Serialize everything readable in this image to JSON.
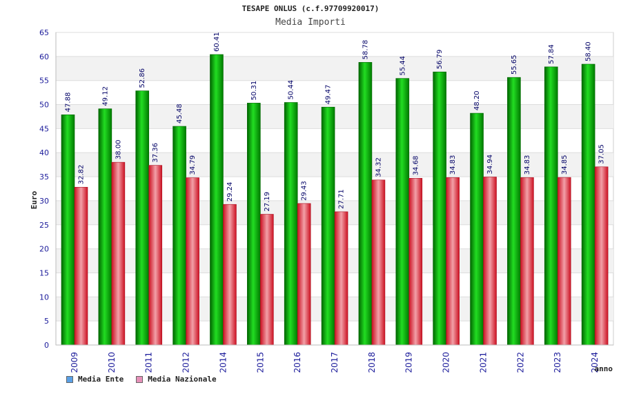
{
  "chart_data": {
    "type": "bar",
    "title": "TESAPE ONLUS (c.f.97709920017)",
    "subtitle": "Media Importi",
    "ylabel": "Euro",
    "xlabel": "anno",
    "ylim": [
      0,
      65
    ],
    "yticks": [
      0,
      5,
      10,
      15,
      20,
      25,
      30,
      35,
      40,
      45,
      50,
      55,
      60,
      65
    ],
    "categories": [
      "2009",
      "2010",
      "2011",
      "2012",
      "2014",
      "2015",
      "2016",
      "2017",
      "2018",
      "2019",
      "2020",
      "2021",
      "2022",
      "2023",
      "2024"
    ],
    "series": [
      {
        "name": "Media Ente",
        "color": "#11aa11",
        "legend_color": "#5aa0e6",
        "values": [
          47.88,
          49.12,
          52.86,
          45.48,
          60.41,
          50.31,
          50.44,
          49.47,
          58.78,
          55.44,
          56.79,
          48.2,
          55.65,
          57.84,
          58.4
        ],
        "labels": [
          "47.88",
          "49.12",
          "52.86",
          "45.48",
          "60.41",
          "50.31",
          "50.44",
          "49.47",
          "58.78",
          "55.44",
          "56.79",
          "48.20",
          "55.65",
          "57.84",
          "58.40"
        ]
      },
      {
        "name": "Media Nazionale",
        "color": "#dd2233",
        "legend_color": "#e690b8",
        "values": [
          32.82,
          38.0,
          37.36,
          34.79,
          29.24,
          27.19,
          29.43,
          27.71,
          34.32,
          34.68,
          34.83,
          34.94,
          34.83,
          34.85,
          37.05
        ],
        "labels": [
          "32.82",
          "38.00",
          "37.36",
          "34.79",
          "29.24",
          "27.19",
          "29.43",
          "27.71",
          "34.32",
          "34.68",
          "34.83",
          "34.94",
          "34.83",
          "34.85",
          "37.05"
        ]
      }
    ],
    "grid": true,
    "legend_position": "bottom-left"
  }
}
